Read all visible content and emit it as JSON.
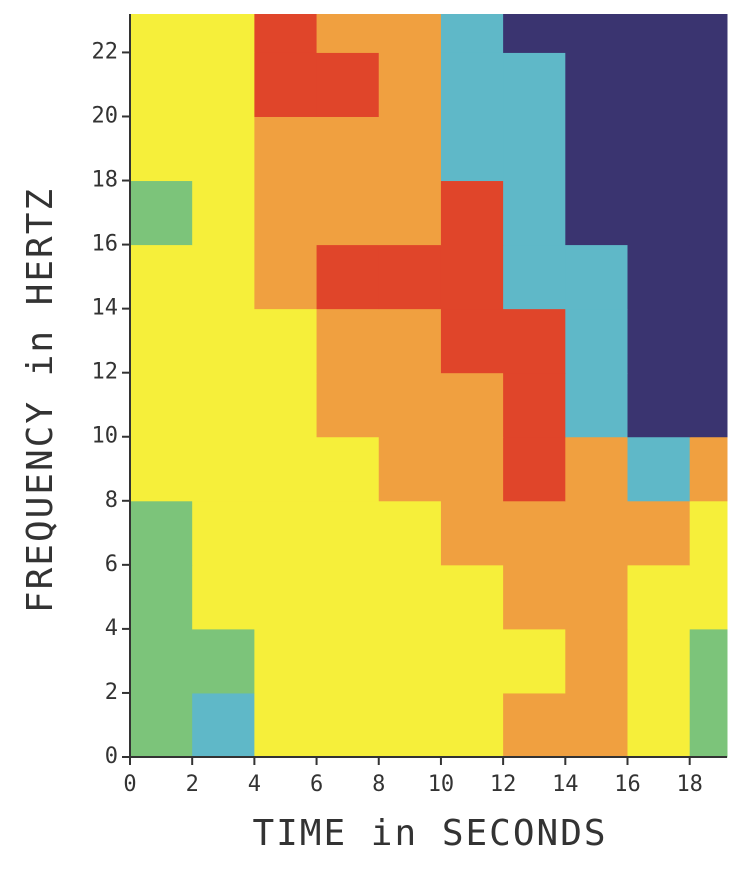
{
  "chart_data": {
    "type": "heatmap",
    "xlabel": "TIME in SECONDS",
    "ylabel": "FREQUENCY in HERTZ",
    "xlim": [
      0,
      19.2
    ],
    "ylim": [
      0,
      23.2
    ],
    "xticks": [
      0,
      2,
      4,
      6,
      8,
      10,
      12,
      14,
      16,
      18
    ],
    "yticks": [
      0,
      2,
      4,
      6,
      8,
      10,
      12,
      14,
      16,
      18,
      20,
      22
    ],
    "x_edges": [
      0,
      2,
      4,
      6,
      8,
      10,
      12,
      14,
      16,
      18,
      19.2
    ],
    "y_edges": [
      0,
      2,
      4,
      6,
      8,
      10,
      12,
      14,
      16,
      18,
      20,
      22,
      23.2
    ],
    "colors": [
      "#7cc47a",
      "#f6ef3a",
      "#f0a040",
      "#e0452a",
      "#5fb8c8",
      "#3a3470"
    ],
    "z": [
      [
        0,
        4,
        1,
        1,
        1,
        1,
        2,
        2,
        1,
        0
      ],
      [
        0,
        0,
        1,
        1,
        1,
        1,
        1,
        2,
        1,
        0
      ],
      [
        0,
        1,
        1,
        1,
        1,
        1,
        2,
        2,
        1,
        1
      ],
      [
        0,
        1,
        1,
        1,
        1,
        2,
        2,
        2,
        2,
        1
      ],
      [
        1,
        1,
        1,
        1,
        2,
        2,
        3,
        2,
        4,
        2
      ],
      [
        1,
        1,
        1,
        2,
        2,
        2,
        3,
        4,
        5,
        5
      ],
      [
        1,
        1,
        1,
        2,
        2,
        3,
        3,
        4,
        5,
        5
      ],
      [
        1,
        1,
        2,
        3,
        3,
        3,
        4,
        4,
        5,
        5
      ],
      [
        0,
        1,
        2,
        2,
        2,
        3,
        4,
        5,
        5,
        5
      ],
      [
        1,
        1,
        2,
        2,
        2,
        4,
        4,
        5,
        5,
        5
      ],
      [
        1,
        1,
        3,
        3,
        2,
        4,
        4,
        5,
        5,
        5
      ],
      [
        1,
        1,
        3,
        2,
        2,
        4,
        5,
        5,
        5,
        5
      ]
    ]
  }
}
